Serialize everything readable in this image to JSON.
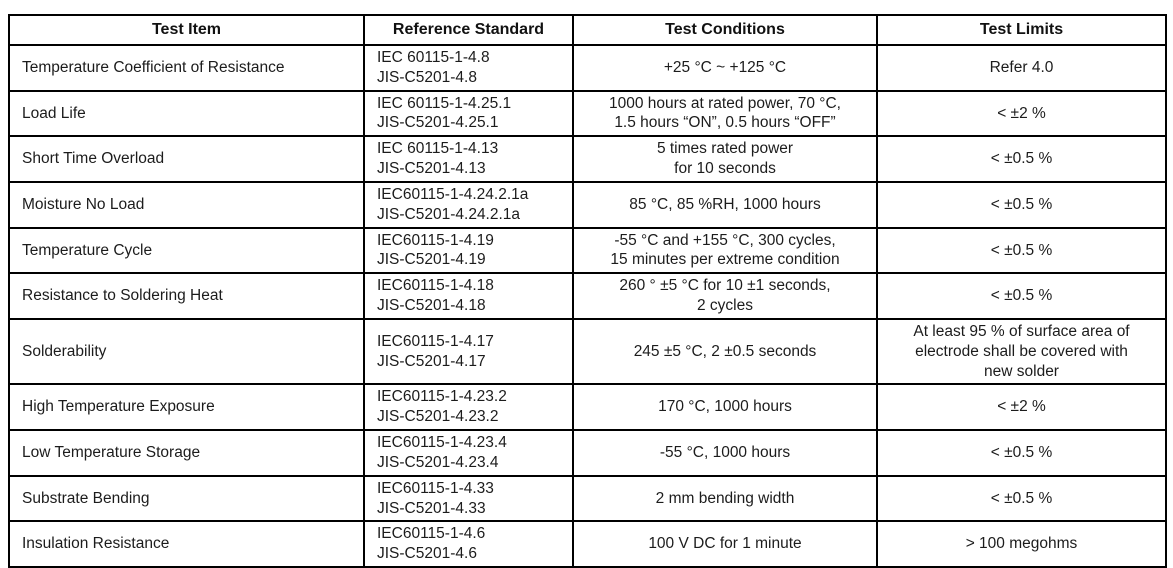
{
  "table": {
    "columns": [
      "Test Item",
      "Reference Standard",
      "Test Conditions",
      "Test Limits"
    ],
    "rows": [
      {
        "item": "Temperature Coefficient of Resistance",
        "reference": [
          "IEC 60115-1-4.8",
          "JIS-C5201-4.8"
        ],
        "conditions": [
          "+25 °C ~ +125 °C"
        ],
        "limits": [
          "Refer 4.0"
        ]
      },
      {
        "item": "Load Life",
        "reference": [
          "IEC 60115-1-4.25.1",
          "JIS-C5201-4.25.1"
        ],
        "conditions": [
          "1000 hours at rated power, 70 °C,",
          "1.5 hours “ON”, 0.5 hours “OFF”"
        ],
        "limits": [
          "< ±2 %"
        ]
      },
      {
        "item": "Short Time Overload",
        "reference": [
          "IEC 60115-1-4.13",
          "JIS-C5201-4.13"
        ],
        "conditions": [
          "5 times rated power",
          "for 10 seconds"
        ],
        "limits": [
          "< ±0.5 %"
        ]
      },
      {
        "item": "Moisture No Load",
        "reference": [
          "IEC60115-1-4.24.2.1a",
          "JIS-C5201-4.24.2.1a"
        ],
        "conditions": [
          "85 °C, 85 %RH, 1000 hours"
        ],
        "limits": [
          "< ±0.5 %"
        ]
      },
      {
        "item": "Temperature Cycle",
        "reference": [
          "IEC60115-1-4.19",
          "JIS-C5201-4.19"
        ],
        "conditions": [
          "-55 °C and +155 °C, 300 cycles,",
          "15 minutes per extreme condition"
        ],
        "limits": [
          "< ±0.5 %"
        ]
      },
      {
        "item": "Resistance to Soldering Heat",
        "reference": [
          "IEC60115-1-4.18",
          "JIS-C5201-4.18"
        ],
        "conditions": [
          "260 ° ±5 °C for 10 ±1 seconds,",
          "2 cycles"
        ],
        "limits": [
          "< ±0.5 %"
        ]
      },
      {
        "item": "Solderability",
        "reference": [
          "IEC60115-1-4.17",
          "JIS-C5201-4.17"
        ],
        "conditions": [
          "245 ±5 °C, 2 ±0.5 seconds"
        ],
        "limits": [
          "At least 95 % of surface area of",
          "electrode shall be covered with",
          "new solder"
        ]
      },
      {
        "item": "High Temperature Exposure",
        "reference": [
          "IEC60115-1-4.23.2",
          "JIS-C5201-4.23.2"
        ],
        "conditions": [
          "170 °C, 1000 hours"
        ],
        "limits": [
          "< ±2 %"
        ]
      },
      {
        "item": "Low Temperature Storage",
        "reference": [
          "IEC60115-1-4.23.4",
          "JIS-C5201-4.23.4"
        ],
        "conditions": [
          "-55 °C, 1000 hours"
        ],
        "limits": [
          "< ±0.5 %"
        ]
      },
      {
        "item": "Substrate Bending",
        "reference": [
          "IEC60115-1-4.33",
          "JIS-C5201-4.33"
        ],
        "conditions": [
          "2 mm bending width"
        ],
        "limits": [
          "< ±0.5 %"
        ]
      },
      {
        "item": "Insulation Resistance",
        "reference": [
          "IEC60115-1-4.6",
          "JIS-C5201-4.6"
        ],
        "conditions": [
          "100 V DC for 1 minute"
        ],
        "limits": [
          "> 100 megohms"
        ]
      }
    ]
  }
}
